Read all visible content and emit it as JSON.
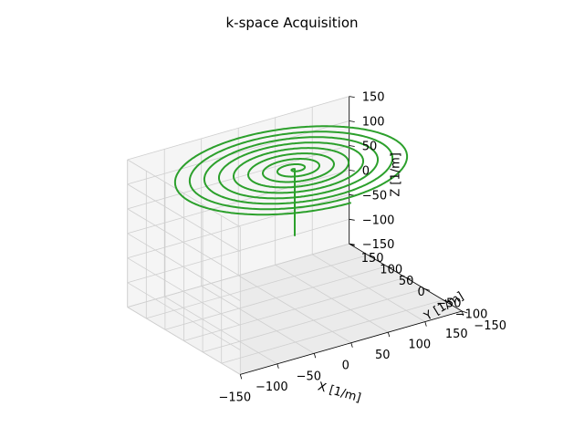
{
  "chart_data": {
    "type": "line",
    "projection": "3d",
    "title": "k-space Acquisition",
    "xlabel": "X [1/m]",
    "ylabel": "Y [1/m]",
    "zlabel": "Z [1/m]",
    "xlim": [
      -150,
      150
    ],
    "ylim": [
      -150,
      150
    ],
    "zlim": [
      -150,
      150
    ],
    "x_ticks": [
      -150,
      -100,
      -50,
      0,
      50,
      100,
      150
    ],
    "y_ticks": [
      -150,
      -100,
      -50,
      0,
      50,
      100,
      150
    ],
    "z_ticks": [
      -150,
      -100,
      -50,
      0,
      50,
      100,
      150
    ],
    "x_tick_labels": [
      "−150",
      "−100",
      "−50",
      "0",
      "50",
      "100",
      "150"
    ],
    "y_tick_labels": [
      "−150",
      "−100",
      "−50",
      "0",
      "50",
      "100",
      "150"
    ],
    "z_tick_labels": [
      "−150",
      "−100",
      "−50",
      "0",
      "50",
      "100",
      "150"
    ],
    "grid": true,
    "pane_color": "#f2f2f2",
    "grid_color": "#cfcfcf",
    "series": [
      {
        "color": "#2ca02c",
        "segments": [
          {
            "kind": "line",
            "description": "vertical approach along z axis",
            "start": [
              0,
              0,
              0
            ],
            "end": [
              0,
              0,
              135
            ]
          },
          {
            "kind": "spiral",
            "description": "planar Archimedean spiral at constant z",
            "z": 135,
            "turns": 8.5,
            "max_radius": 150,
            "center": [
              0,
              0
            ]
          }
        ]
      }
    ]
  }
}
